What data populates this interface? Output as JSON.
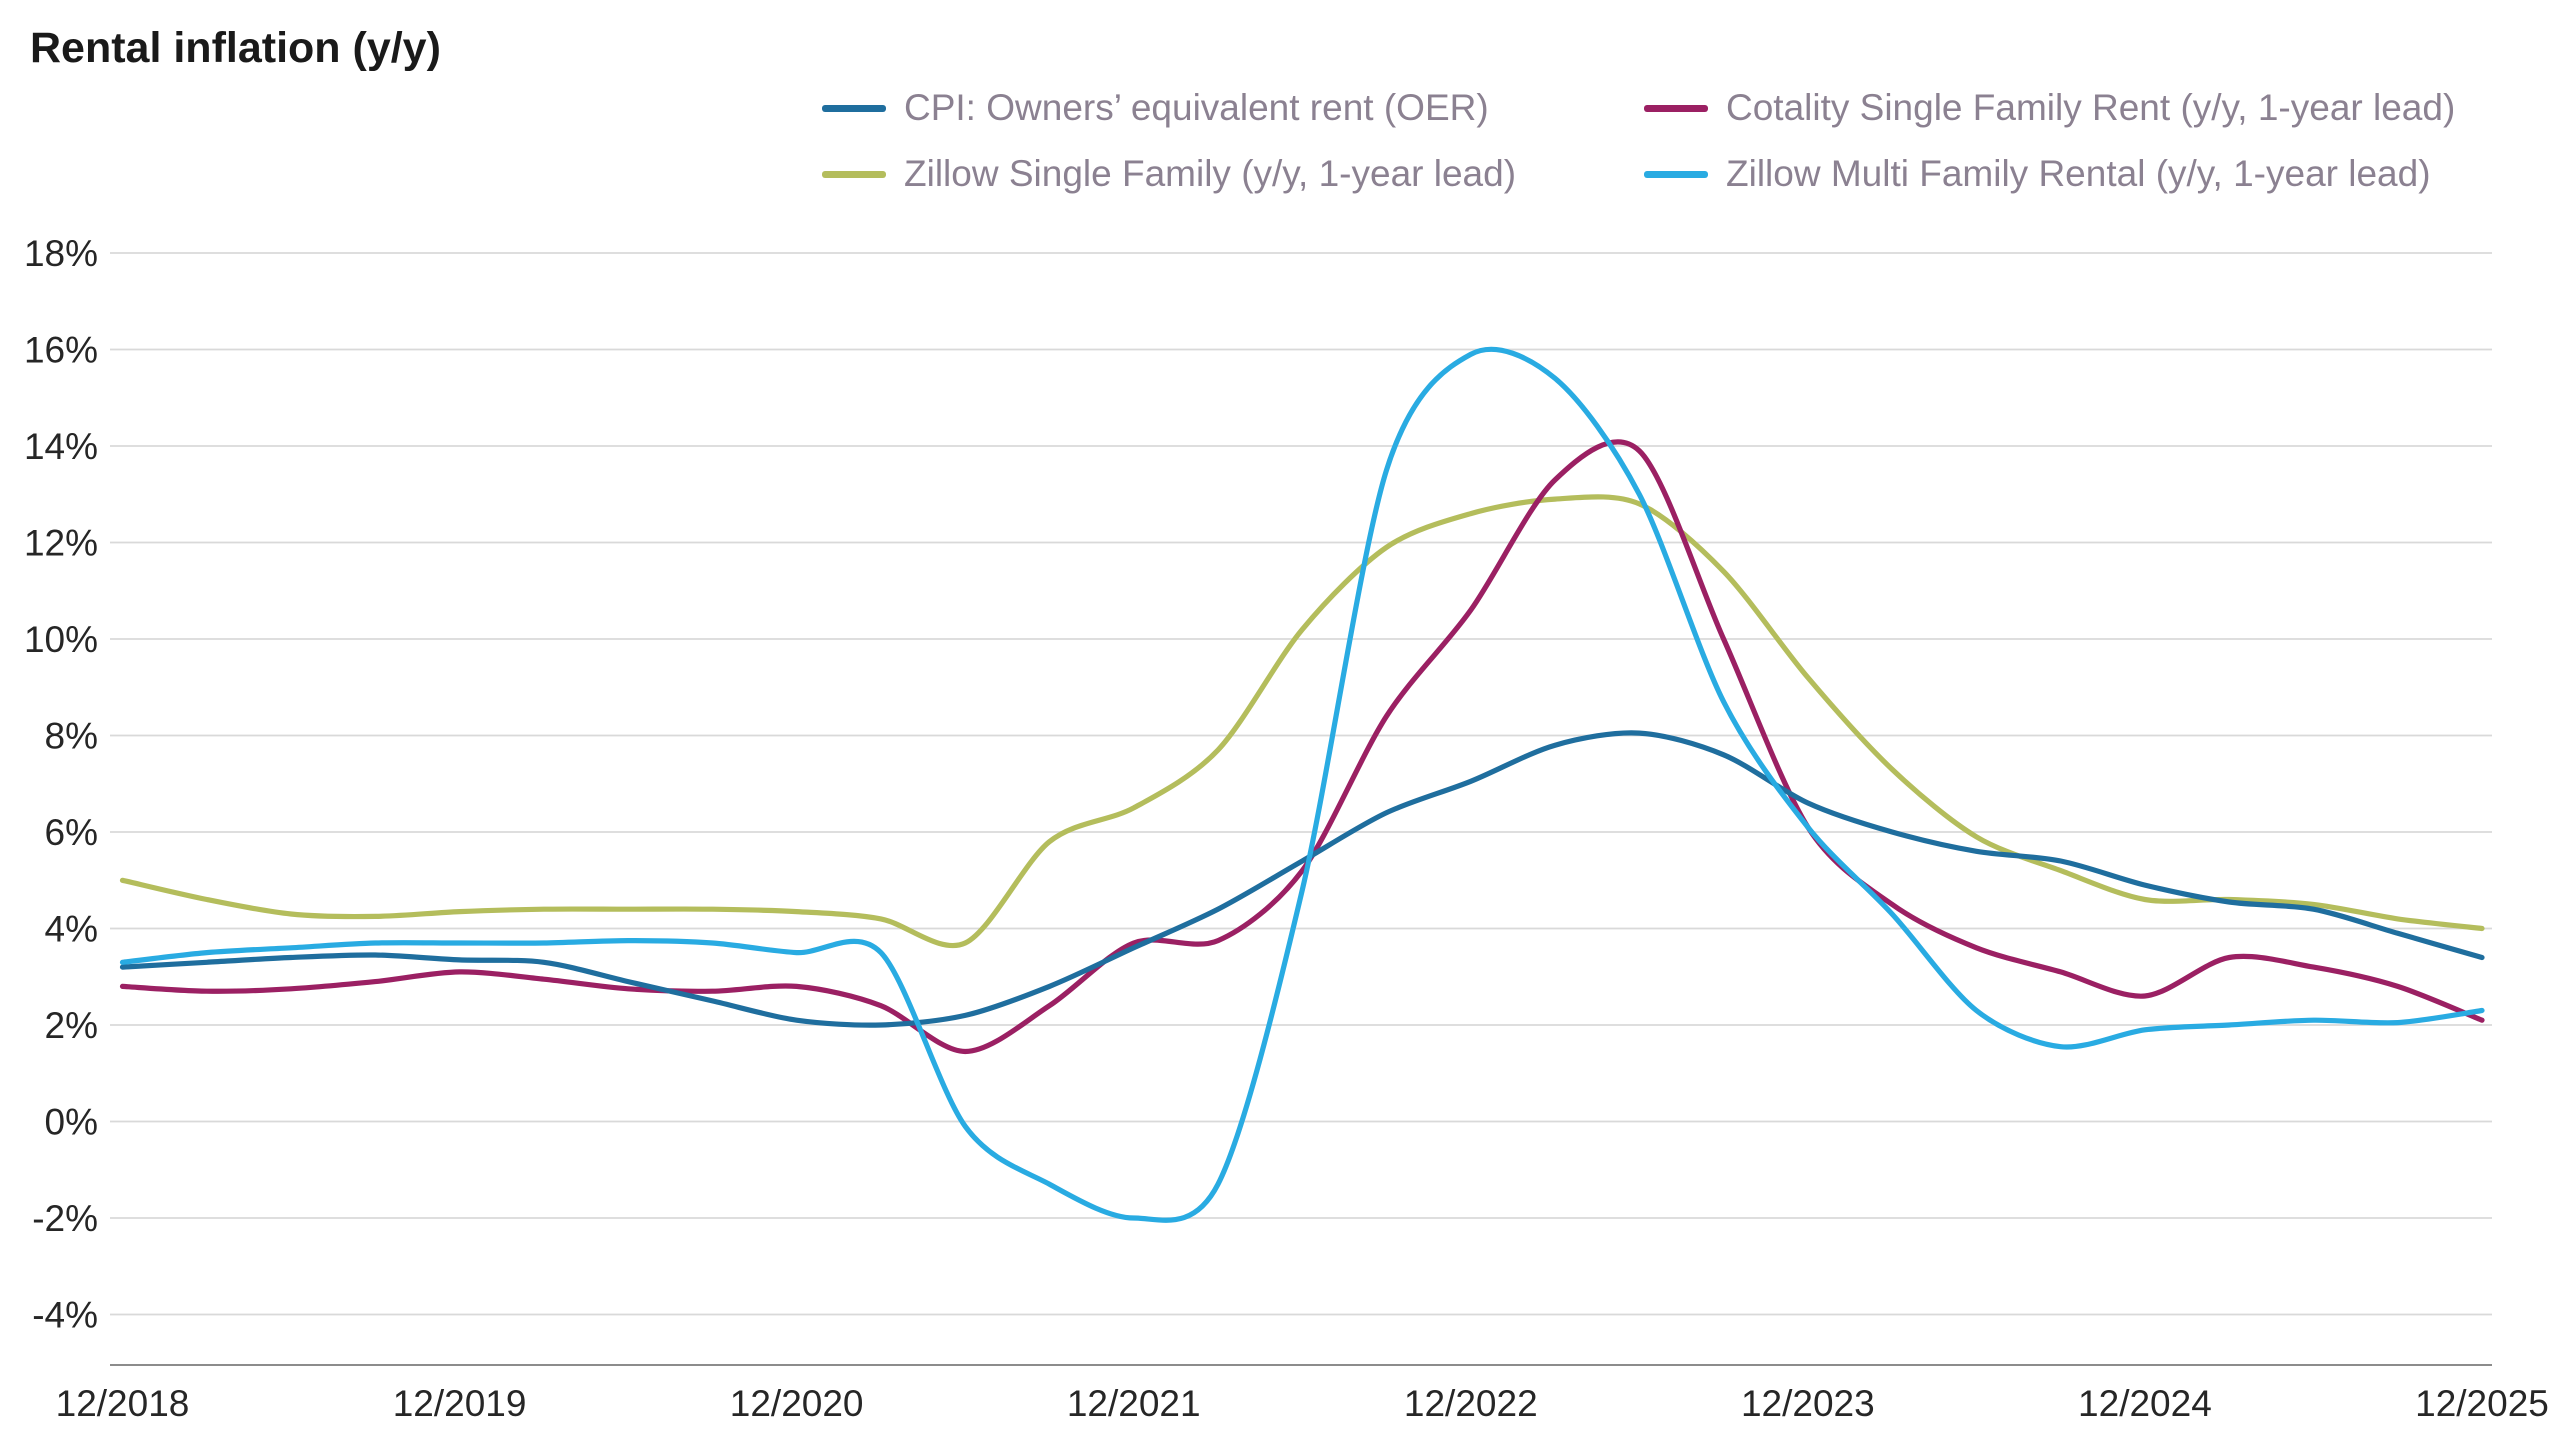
{
  "chart_data": {
    "type": "line",
    "title": "Rental inflation (y/y)",
    "y_unit": "%",
    "ylim": [
      -4,
      18
    ],
    "grid": "horizontal",
    "legend_position": "top, two rows, two columns",
    "y_ticks": [
      -4,
      -2,
      0,
      2,
      4,
      6,
      8,
      10,
      12,
      14,
      16,
      18
    ],
    "x_axis_ticks": [
      "12/2018",
      "12/2019",
      "12/2020",
      "12/2021",
      "12/2022",
      "12/2023",
      "12/2024",
      "12/2025"
    ],
    "x": [
      "12/2018",
      "03/2019",
      "06/2019",
      "09/2019",
      "12/2019",
      "03/2020",
      "06/2020",
      "09/2020",
      "12/2020",
      "03/2021",
      "06/2021",
      "09/2021",
      "12/2021",
      "03/2022",
      "06/2022",
      "09/2022",
      "12/2022",
      "03/2023",
      "06/2023",
      "09/2023",
      "12/2023",
      "03/2024",
      "06/2024",
      "09/2024",
      "12/2024",
      "03/2025",
      "06/2025",
      "09/2025",
      "12/2025"
    ],
    "series": [
      {
        "name": "CPI: Owners’ equivalent rent (OER)",
        "slug": "cpi-oer",
        "color": "#1f6e9e",
        "values": [
          3.2,
          3.3,
          3.4,
          3.45,
          3.35,
          3.3,
          2.9,
          2.5,
          2.1,
          2.0,
          2.2,
          2.8,
          3.6,
          4.4,
          5.4,
          6.4,
          7.05,
          7.8,
          8.05,
          7.6,
          6.6,
          6.0,
          5.6,
          5.4,
          4.9,
          4.55,
          4.4,
          3.9,
          3.4
        ]
      },
      {
        "name": "Cotality Single Family Rent (y/y, 1-year lead)",
        "slug": "cotality-single-family-rent",
        "color": "#9b2063",
        "values": [
          2.8,
          2.7,
          2.75,
          2.9,
          3.1,
          2.95,
          2.75,
          2.7,
          2.8,
          2.4,
          1.45,
          2.4,
          3.7,
          3.75,
          5.2,
          8.4,
          10.6,
          13.3,
          13.9,
          10.0,
          6.1,
          4.5,
          3.6,
          3.1,
          2.6,
          3.4,
          3.2,
          2.8,
          2.1
        ]
      },
      {
        "name": "Zillow Single Family (y/y, 1-year lead)",
        "slug": "zillow-single-family",
        "color": "#b4bd5c",
        "values": [
          5.0,
          4.6,
          4.3,
          4.25,
          4.35,
          4.4,
          4.4,
          4.4,
          4.35,
          4.2,
          3.7,
          5.8,
          6.5,
          7.7,
          10.2,
          11.9,
          12.6,
          12.9,
          12.8,
          11.4,
          9.2,
          7.3,
          5.9,
          5.2,
          4.6,
          4.6,
          4.5,
          4.2,
          4.0
        ]
      },
      {
        "name": "Zillow Multi Family Rental (y/y, 1-year lead)",
        "slug": "zillow-multi-family-rental",
        "color": "#29abe2",
        "values": [
          3.3,
          3.5,
          3.6,
          3.7,
          3.7,
          3.7,
          3.75,
          3.7,
          3.5,
          3.5,
          -0.1,
          -1.3,
          -2.0,
          -1.3,
          4.8,
          13.5,
          15.9,
          15.4,
          13.0,
          8.7,
          6.1,
          4.3,
          2.3,
          1.55,
          1.9,
          2.0,
          2.1,
          2.05,
          2.3
        ]
      }
    ]
  },
  "colors": {
    "background": "#ffffff",
    "title_text": "#1a1a1a",
    "legend_text": "#8b8191",
    "gridline": "#d9d9d9",
    "axis_line": "#8c8c8c",
    "tick_label": "#262626"
  }
}
